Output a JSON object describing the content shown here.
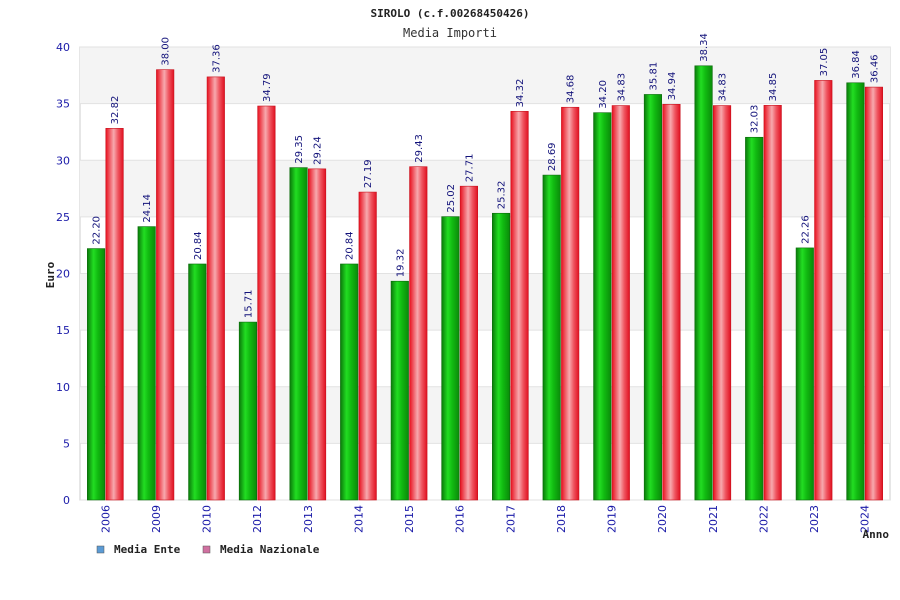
{
  "chart_data": {
    "type": "bar",
    "title": "SIROLO (c.f.00268450426)",
    "subtitle": "Media Importi",
    "xlabel": "Anno",
    "ylabel": "Euro",
    "ylim": [
      0,
      40
    ],
    "yticks": [
      "0",
      "5",
      "10",
      "15",
      "20",
      "25",
      "30",
      "35",
      "40"
    ],
    "grid": true,
    "legend_position": "bottom-left",
    "categories": [
      "2006",
      "2009",
      "2010",
      "2012",
      "2013",
      "2014",
      "2015",
      "2016",
      "2017",
      "2018",
      "2019",
      "2020",
      "2021",
      "2022",
      "2023",
      "2024"
    ],
    "series": [
      {
        "name": "Media Ente",
        "color": "#11aa11",
        "legend_color": "#5b9bd5",
        "values": [
          22.2,
          24.14,
          20.84,
          15.71,
          29.35,
          20.84,
          19.32,
          25.02,
          25.32,
          28.69,
          34.2,
          35.81,
          38.34,
          32.03,
          22.26,
          36.84
        ],
        "labels": [
          "22.20",
          "24.14",
          "20.84",
          "15.71",
          "29.35",
          "20.84",
          "19.32",
          "25.02",
          "25.32",
          "28.69",
          "34.20",
          "35.81",
          "38.34",
          "32.03",
          "22.26",
          "36.84"
        ]
      },
      {
        "name": "Media Nazionale",
        "color": "#e8202a",
        "legend_color": "#d070a0",
        "values": [
          32.82,
          38.0,
          37.36,
          34.79,
          29.24,
          27.19,
          29.43,
          27.71,
          34.32,
          34.68,
          34.83,
          34.94,
          34.83,
          34.85,
          37.05,
          36.46
        ],
        "labels": [
          "32.82",
          "38.00",
          "37.36",
          "34.79",
          "29.24",
          "27.19",
          "29.43",
          "27.71",
          "34.32",
          "34.68",
          "34.83",
          "34.94",
          "34.83",
          "34.85",
          "37.05",
          "36.46"
        ]
      }
    ]
  }
}
